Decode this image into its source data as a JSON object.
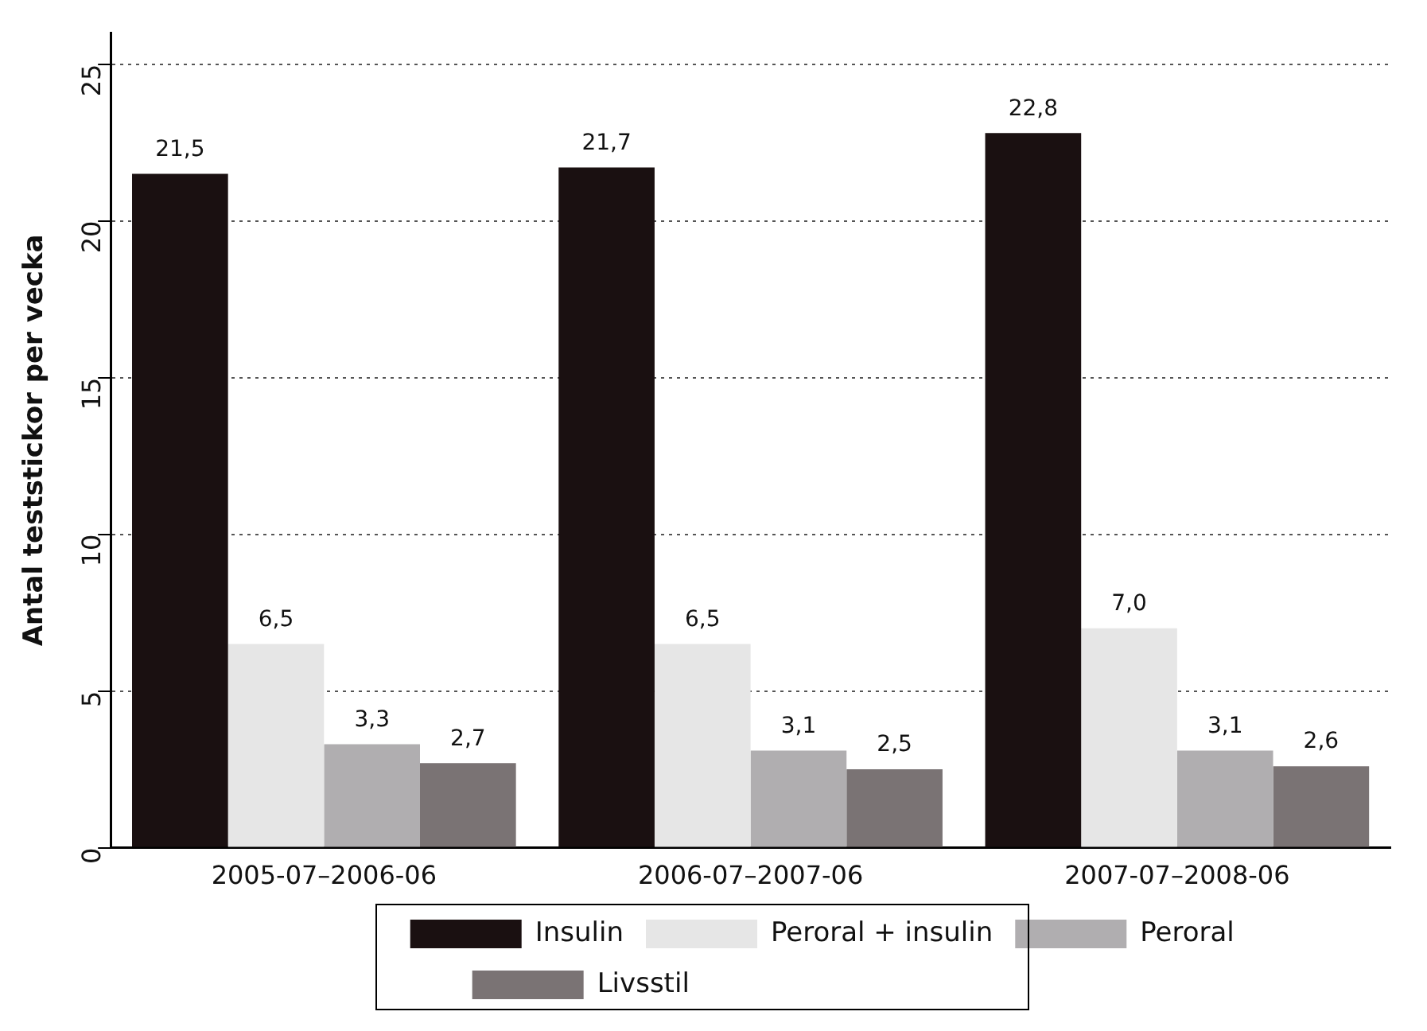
{
  "chart_data": {
    "type": "bar",
    "ylabel": "Antal teststickor per vecka",
    "categories": [
      "2005-07–2006-06",
      "2006-07–2007-06",
      "2007-07–2008-06"
    ],
    "series": [
      {
        "name": "Insulin",
        "color": "#1a1011",
        "values": [
          21.5,
          21.7,
          22.8
        ],
        "value_labels": [
          "21,5",
          "21,7",
          "22,8"
        ]
      },
      {
        "name": "Peroral + insulin",
        "color": "#e6e6e6",
        "values": [
          6.5,
          6.5,
          7.0
        ],
        "value_labels": [
          "6,5",
          "6,5",
          "7,0"
        ]
      },
      {
        "name": "Peroral",
        "color": "#b0aeb0",
        "values": [
          3.3,
          3.1,
          3.1
        ],
        "value_labels": [
          "3,3",
          "3,1",
          "3,1"
        ]
      },
      {
        "name": "Livsstil",
        "color": "#7a7374",
        "values": [
          2.7,
          2.5,
          2.6
        ],
        "value_labels": [
          "2,7",
          "2,5",
          "2,6"
        ]
      }
    ],
    "ylim": [
      0,
      26
    ],
    "yticks": [
      0,
      5,
      10,
      15,
      20,
      25
    ],
    "grid": "y",
    "legend": "bottom"
  }
}
